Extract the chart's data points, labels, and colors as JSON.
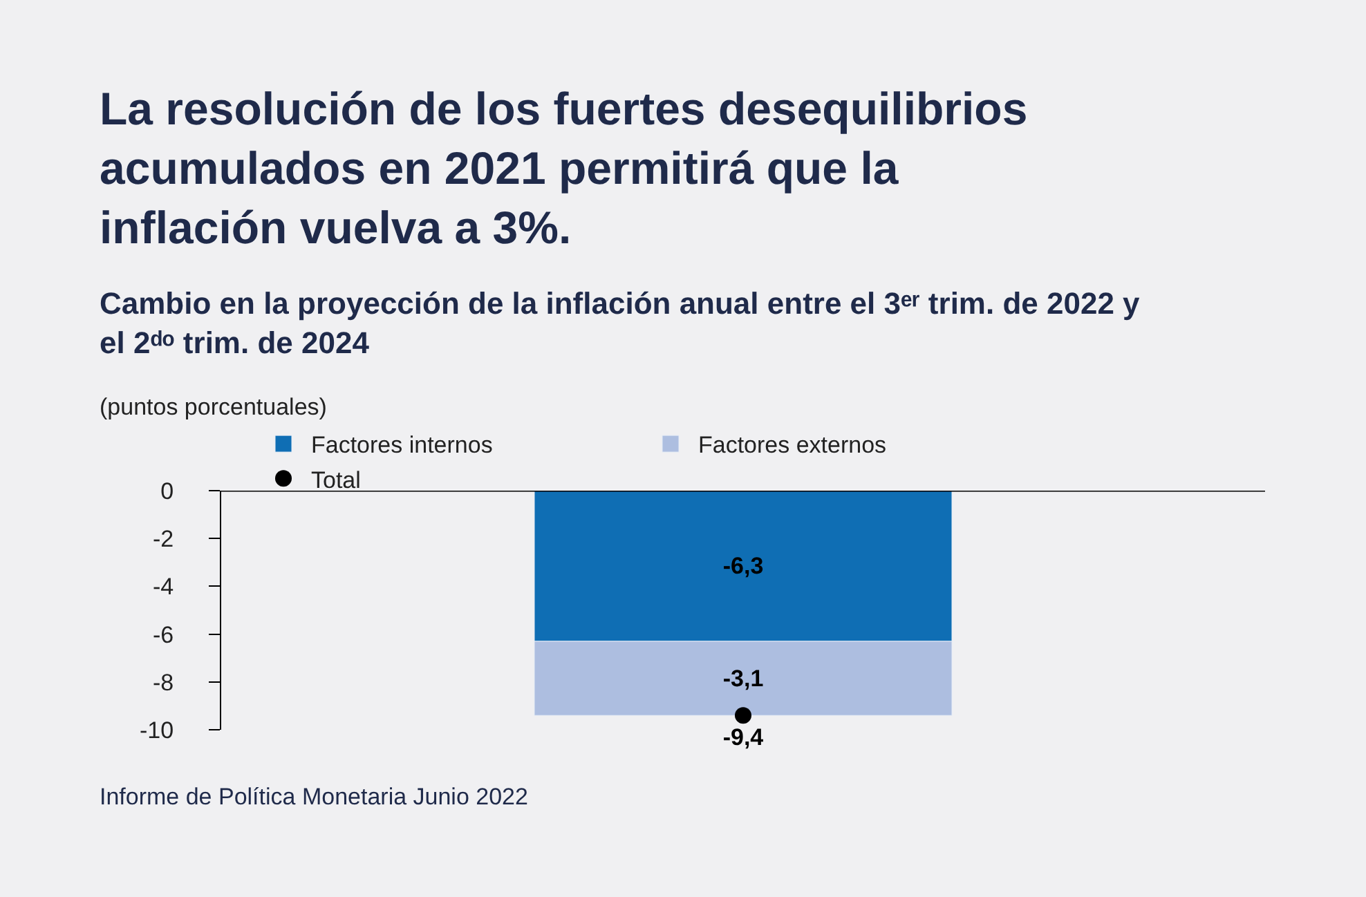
{
  "chart_data": {
    "type": "bar",
    "stacked": true,
    "title": "La resolución de los fuertes desequilibrios acumulados en 2021 permitirá que la inflación vuelva a 3%.",
    "subtitle": "Cambio en la proyección de la inflación anual entre el 3ᵉʳ trim. de 2022 y el 2ᵈᵒ trim. de 2024",
    "ylabel": "(puntos porcentuales)",
    "categories": [
      null
    ],
    "series": [
      {
        "name": "Factores internos",
        "color": "#0f6eb4",
        "values": [
          -6.3
        ],
        "value_labels": [
          "-6,3"
        ]
      },
      {
        "name": "Factores externos",
        "color": "#adbee0",
        "values": [
          -3.1
        ],
        "value_labels": [
          "-3,1"
        ]
      },
      {
        "name": "Total",
        "type": "scatter",
        "color": "#000000",
        "values": [
          -9.4
        ],
        "value_labels": [
          "-9,4"
        ]
      }
    ],
    "ylim": [
      -10,
      0
    ],
    "yticks": [
      -10,
      -8,
      -6,
      -4,
      -2,
      0
    ],
    "grid": false,
    "legend": "top",
    "marker": "circle",
    "annotations": [
      "Informe de Política Monetaria Junio 2022"
    ]
  }
}
